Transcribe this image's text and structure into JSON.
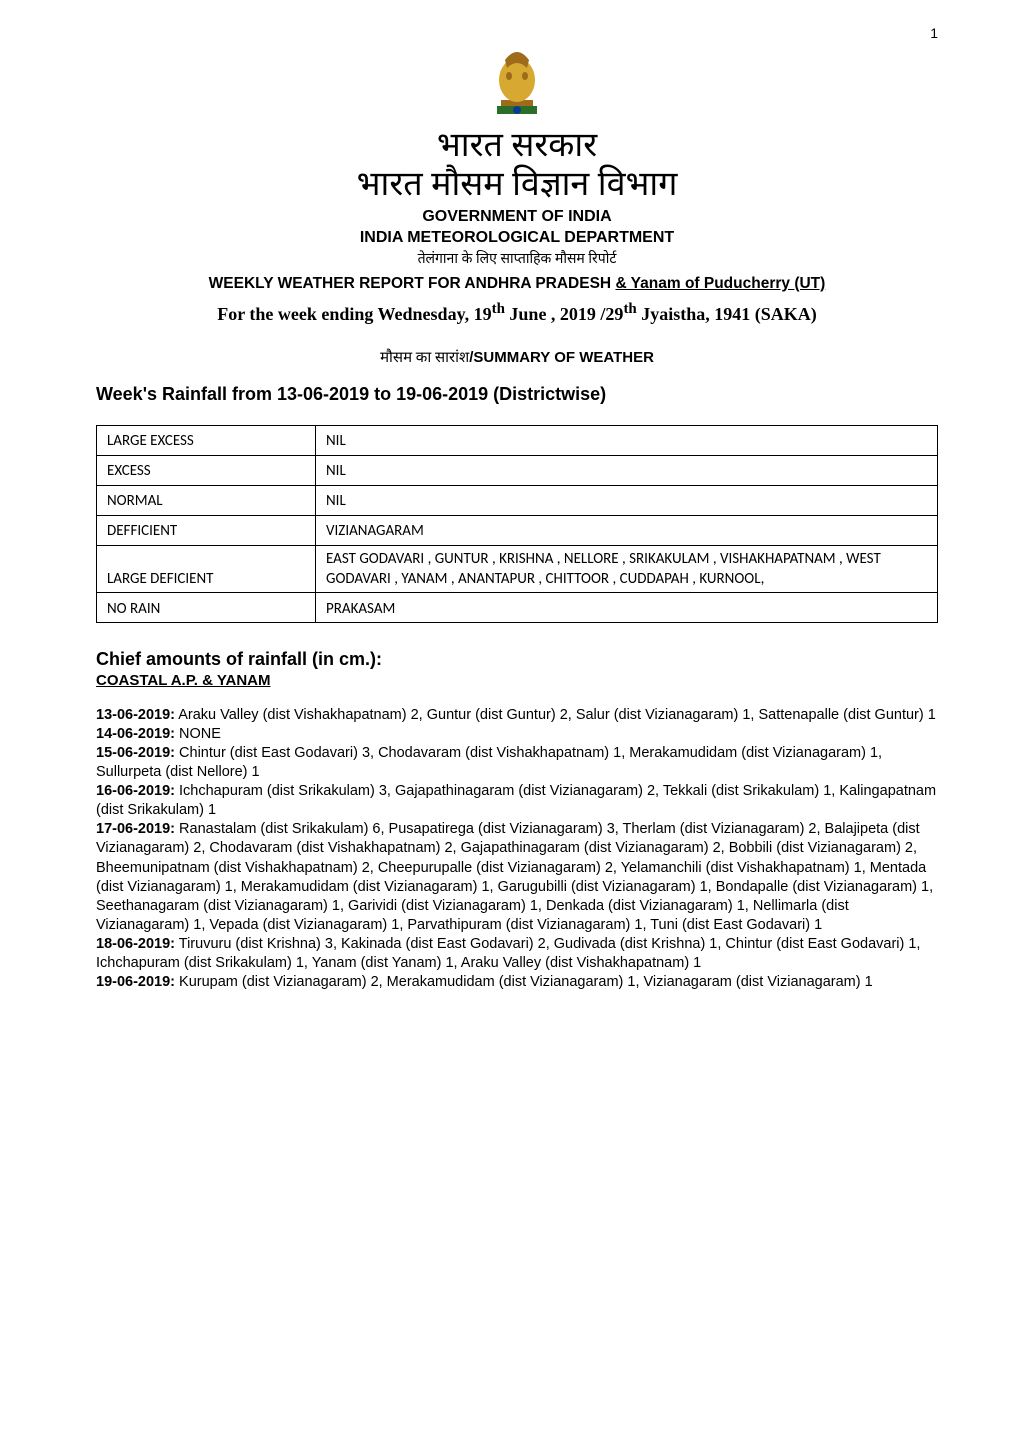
{
  "page_number": "1",
  "header": {
    "emblem_colors": {
      "body": "#d7a933",
      "top": "#9e6b1b",
      "base": "#2a6e2a"
    },
    "hindi_gov": "भारत सरकार",
    "hindi_dept": "भारत मौसम विज्ञान विभाग",
    "gov": "GOVERNMENT OF INDIA",
    "dept": "INDIA METEOROLOGICAL DEPARTMENT",
    "hindi_sub": "तेलंगाना के लिए साप्ताहिक मौसम रिपोर्ट",
    "weekly_prefix": "WEEKLY WEATHER REPORT FOR ANDHRA PRADESH ",
    "weekly_underlined": "& Yanam of Puducherry (UT)",
    "for_week_a": "For the week ending Wednesday,  19",
    "for_week_th1": "th",
    "for_week_b": " June , 2019 /29",
    "for_week_th2": "th",
    "for_week_c": "    Jyaistha, 1941 (SAKA)"
  },
  "summary_heading_hindi": "मौसम का सारांश",
  "summary_heading_en": "/SUMMARY OF WEATHER",
  "weeks_rainfall": "Week's Rainfall from 13-06-2019 to 19-06-2019 (Districtwise)",
  "table": {
    "rows": [
      {
        "label": "LARGE EXCESS",
        "value": "NIL",
        "tall": true
      },
      {
        "label": "EXCESS",
        "value": "NIL",
        "tall": true
      },
      {
        "label": "NORMAL",
        "value": "NIL",
        "tall": false
      },
      {
        "label": "DEFFICIENT",
        "value": "VIZIANAGARAM",
        "tall": true
      },
      {
        "label": "LARGE DEFICIENT",
        "value": "EAST GODAVARI , GUNTUR , KRISHNA , NELLORE , SRIKAKULAM , VISHAKHAPATNAM , WEST GODAVARI , YANAM , ANANTAPUR , CHITTOOR , CUDDAPAH , KURNOOL,",
        "tall": false
      },
      {
        "label": "NO RAIN",
        "value": "PRAKASAM",
        "tall": false
      }
    ]
  },
  "chief_title": "Chief amounts of rainfall (in cm.):",
  "chief_sub": "COASTAL A.P. & YANAM",
  "entries": [
    {
      "date": "13-06-2019:",
      "text": " Araku Valley (dist Vishakhapatnam) 2, Guntur (dist Guntur) 2, Salur (dist Vizianagaram) 1, Sattenapalle (dist Guntur) 1"
    },
    {
      "date": "14-06-2019:",
      "text": " NONE"
    },
    {
      "date": "15-06-2019:",
      "text": " Chintur (dist East Godavari) 3, Chodavaram (dist Vishakhapatnam) 1, Merakamudidam (dist Vizianagaram) 1, Sullurpeta (dist Nellore) 1"
    },
    {
      "date": "16-06-2019:",
      "text": " Ichchapuram (dist Srikakulam) 3, Gajapathinagaram (dist Vizianagaram) 2, Tekkali (dist Srikakulam) 1, Kalingapatnam (dist Srikakulam) 1"
    },
    {
      "date": "17-06-2019:",
      "text": " Ranastalam (dist Srikakulam) 6, Pusapatirega (dist Vizianagaram) 3, Therlam (dist Vizianagaram) 2, Balajipeta (dist Vizianagaram) 2, Chodavaram (dist Vishakhapatnam) 2, Gajapathinagaram (dist Vizianagaram) 2, Bobbili (dist Vizianagaram) 2, Bheemunipatnam (dist Vishakhapatnam) 2, Cheepurupalle (dist Vizianagaram) 2, Yelamanchili (dist Vishakhapatnam) 1, Mentada (dist Vizianagaram) 1, Merakamudidam (dist Vizianagaram) 1, Garugubilli (dist Vizianagaram) 1, Bondapalle (dist Vizianagaram) 1, Seethanagaram (dist Vizianagaram) 1, Garividi (dist Vizianagaram) 1, Denkada (dist Vizianagaram) 1, Nellimarla (dist Vizianagaram) 1, Vepada (dist Vizianagaram) 1, Parvathipuram (dist Vizianagaram) 1, Tuni (dist East Godavari) 1"
    },
    {
      "date": "18-06-2019:",
      "text": " Tiruvuru (dist Krishna) 3, Kakinada (dist East Godavari) 2, Gudivada (dist Krishna) 1, Chintur (dist East Godavari) 1, Ichchapuram (dist Srikakulam) 1, Yanam (dist Yanam) 1, Araku Valley (dist Vishakhapatnam) 1"
    },
    {
      "date": "19-06-2019:",
      "text": " Kurupam (dist Vizianagaram) 2, Merakamudidam (dist Vizianagaram) 1, Vizianagaram (dist Vizianagaram) 1"
    }
  ]
}
